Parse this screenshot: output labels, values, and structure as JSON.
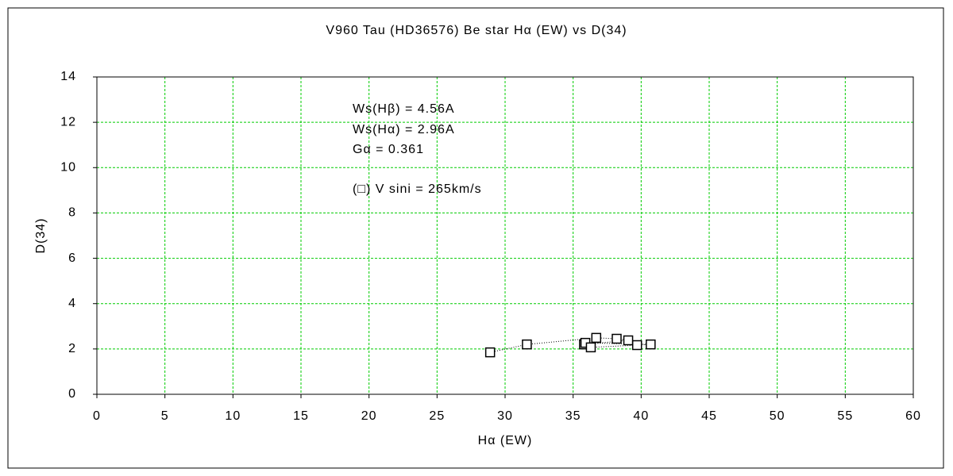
{
  "chart_data": {
    "type": "scatter",
    "title": "V960 Tau (HD36576)    Be star    Hα (EW) vs D(34)",
    "x_label": "Hα (EW)",
    "y_label": "D(34)",
    "annotations": [
      "Ws(Hβ) = 4.56A",
      "Ws(Hα) = 2.96A",
      "Gα = 0.361",
      "(□) V sini = 265km/s"
    ],
    "x": [
      28.9,
      31.6,
      36.7,
      38.2,
      39.05,
      35.8,
      35.9,
      40.7,
      39.7,
      36.3
    ],
    "values": [
      1.85,
      2.2,
      2.49,
      2.45,
      2.38,
      2.2,
      2.27,
      2.2,
      2.17,
      2.07
    ],
    "color": "#000000",
    "connect_line": true,
    "xlim": [
      0,
      60
    ],
    "xticks": [
      0,
      5,
      10,
      15,
      20,
      25,
      30,
      35,
      40,
      45,
      50,
      55,
      60
    ],
    "ylim": [
      0,
      14
    ],
    "yticks": [
      0,
      2,
      4,
      6,
      8,
      10,
      12,
      14
    ],
    "grid": true,
    "grid_color": "#00cc00"
  }
}
